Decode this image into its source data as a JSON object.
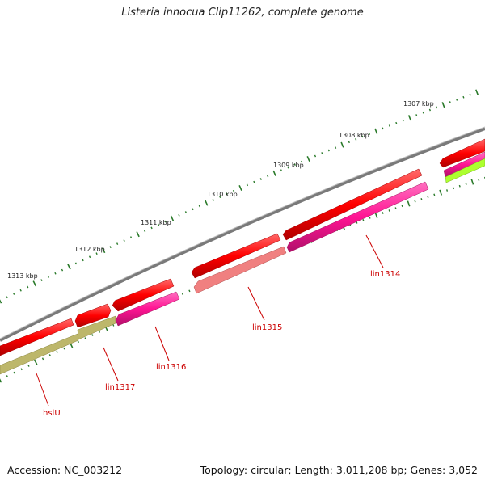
{
  "title": "Listeria innocua Clip11262, complete genome",
  "footer": {
    "accession": "Accession: NC_003212",
    "summary": "Topology: circular; Length: 3,011,208 bp; Genes: 3,052"
  },
  "scale_labels": [
    "1313 kbp",
    "1312 kbp",
    "1311 kbp",
    "1310 kbp",
    "1309 kbp",
    "1308 kbp",
    "1307 kbp"
  ],
  "gene_labels": [
    "hslU",
    "lin1317",
    "lin1316",
    "lin1315",
    "lin1314"
  ],
  "colors": {
    "backbone": "#7a7a7a",
    "forward_gene": "#ff0000",
    "tick": "#2a7a2a",
    "label": "#cc0000",
    "magenta": "#ff1493",
    "olive": "#bdb76b",
    "salmon": "#f08080",
    "lime": "#adff2f"
  }
}
